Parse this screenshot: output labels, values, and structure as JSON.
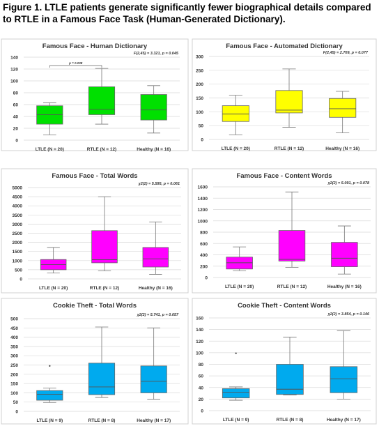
{
  "caption": "Figure 1. LTLE patients generate significantly fewer biographical details compared to RTLE in a Famous Face Task (Human-Generated Dictionary).",
  "chart_data": [
    {
      "type": "boxplot",
      "title": "Famous Face - Human Dictionary",
      "stat": "F(2,45) = 3.321, p = 0.045",
      "categories": [
        "LTLE (N = 20)",
        "RTLE (N = 12)",
        "Healthy (N = 16)"
      ],
      "color": "#00e000",
      "ylim": [
        0,
        140
      ],
      "yticks": [
        0,
        20,
        40,
        60,
        80,
        100,
        120,
        140
      ],
      "boxes": [
        {
          "min": 9,
          "q1": 27,
          "median": 43,
          "q3": 58,
          "max": 63,
          "outliers": []
        },
        {
          "min": 27,
          "q1": 43,
          "median": 52,
          "q3": 90,
          "max": 121,
          "outliers": []
        },
        {
          "min": 12,
          "q1": 34,
          "median": 51,
          "q3": 77,
          "max": 92,
          "outliers": []
        }
      ],
      "bracket": {
        "from": 0,
        "to": 1,
        "label": "p = 0.038"
      }
    },
    {
      "type": "boxplot",
      "title": "Famous Face - Automated Dictionary",
      "stat": "F(2,45) = 2.709, p = 0.077",
      "categories": [
        "LTLE (N = 20)",
        "RTLE (N = 12)",
        "Healthy (N = 16)"
      ],
      "color": "#ffff00",
      "ylim": [
        0,
        300
      ],
      "yticks": [
        0,
        50,
        100,
        150,
        200,
        250,
        300
      ],
      "boxes": [
        {
          "min": 17,
          "q1": 65,
          "median": 92,
          "q3": 122,
          "max": 160,
          "outliers": []
        },
        {
          "min": 44,
          "q1": 96,
          "median": 106,
          "q3": 177,
          "max": 255,
          "outliers": []
        },
        {
          "min": 24,
          "q1": 80,
          "median": 111,
          "q3": 148,
          "max": 174,
          "outliers": []
        }
      ]
    },
    {
      "type": "boxplot",
      "title": "Famous Face - Total Words",
      "stat": "χ2(2) = 5.595, p = 0.061",
      "categories": [
        "LTLE (N = 20)",
        "RTLE (N = 12)",
        "Healthy (N = 16)"
      ],
      "color": "#ff00ff",
      "ylim": [
        0,
        5000
      ],
      "yticks": [
        0,
        500,
        1000,
        1500,
        2000,
        2500,
        3000,
        3500,
        4000,
        4500,
        5000
      ],
      "boxes": [
        {
          "min": 320,
          "q1": 500,
          "median": 780,
          "q3": 1060,
          "max": 1720,
          "outliers": []
        },
        {
          "min": 440,
          "q1": 880,
          "median": 1050,
          "q3": 2640,
          "max": 4500,
          "outliers": []
        },
        {
          "min": 250,
          "q1": 650,
          "median": 1100,
          "q3": 1720,
          "max": 3120,
          "outliers": []
        }
      ]
    },
    {
      "type": "boxplot",
      "title": "Famous Face - Content Words",
      "stat": "χ2(2) = 5.091, p = 0.078",
      "categories": [
        "LTLE (N = 20)",
        "RTLE (N = 12)",
        "Healthy (N = 16)"
      ],
      "color": "#ff00ff",
      "ylim": [
        0,
        1600
      ],
      "yticks": [
        0,
        200,
        400,
        600,
        800,
        1000,
        1200,
        1400,
        1600
      ],
      "boxes": [
        {
          "min": 120,
          "q1": 150,
          "median": 260,
          "q3": 360,
          "max": 540,
          "outliers": []
        },
        {
          "min": 180,
          "q1": 290,
          "median": 320,
          "q3": 830,
          "max": 1510,
          "outliers": []
        },
        {
          "min": 60,
          "q1": 190,
          "median": 340,
          "q3": 620,
          "max": 910,
          "outliers": []
        }
      ]
    },
    {
      "type": "boxplot",
      "title": "Cookie Theft - Total Words",
      "stat": "χ2(2) = 5.741, p = 0.057",
      "categories": [
        "LTLE (N = 9)",
        "RTLE (N = 8)",
        "Healthy (N = 17)"
      ],
      "color": "#00aaee",
      "ylim": [
        0,
        500
      ],
      "yticks": [
        0,
        50,
        100,
        150,
        200,
        250,
        300,
        350,
        400,
        450,
        500
      ],
      "boxes": [
        {
          "min": 48,
          "q1": 60,
          "median": 92,
          "q3": 112,
          "max": 125,
          "outliers": [
            245
          ]
        },
        {
          "min": 75,
          "q1": 90,
          "median": 132,
          "q3": 260,
          "max": 455,
          "outliers": []
        },
        {
          "min": 65,
          "q1": 100,
          "median": 162,
          "q3": 245,
          "max": 450,
          "outliers": []
        }
      ]
    },
    {
      "type": "boxplot",
      "title": "Cookie Theft - Content Words",
      "stat": "χ2(2) = 3.854, p = 0.146",
      "categories": [
        "LTLE (N = 9)",
        "RTLE (N = 8)",
        "Healthy (N = 17)"
      ],
      "color": "#00aaee",
      "ylim": [
        0,
        160
      ],
      "yticks": [
        0,
        20,
        40,
        60,
        80,
        100,
        120,
        140,
        160
      ],
      "boxes": [
        {
          "min": 18,
          "q1": 22,
          "median": 32,
          "q3": 38,
          "max": 41,
          "outliers": [
            99
          ]
        },
        {
          "min": 27,
          "q1": 28,
          "median": 37,
          "q3": 80,
          "max": 127,
          "outliers": []
        },
        {
          "min": 20,
          "q1": 31,
          "median": 55,
          "q3": 76,
          "max": 138,
          "outliers": []
        }
      ]
    }
  ]
}
